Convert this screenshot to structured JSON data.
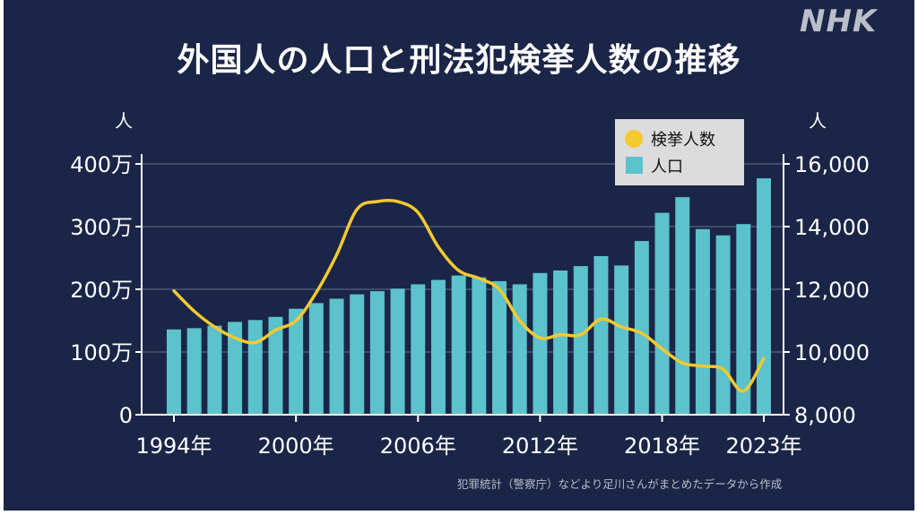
{
  "brand": "NHK",
  "title": "外国人の人口と刑法犯検挙人数の推移",
  "source_note": "犯罪統計（警察庁）などより足川さんがまとめたデータから作成",
  "colors": {
    "background": "#1a2547",
    "bar": "#5cc2cc",
    "line": "#f5c930",
    "grid": "#4d5878",
    "text": "#ffffff",
    "legend_bg": "#dcdcdc"
  },
  "chart_data": {
    "type": "bar",
    "title": "外国人の人口と刑法犯検挙人数の推移",
    "x": [
      1994,
      1995,
      1996,
      1997,
      1998,
      1999,
      2000,
      2001,
      2002,
      2003,
      2004,
      2005,
      2006,
      2007,
      2008,
      2009,
      2010,
      2011,
      2012,
      2013,
      2014,
      2015,
      2016,
      2017,
      2018,
      2019,
      2020,
      2021,
      2022,
      2023
    ],
    "x_tick_labels": [
      "1994年",
      "2000年",
      "2006年",
      "2012年",
      "2018年",
      "2023年"
    ],
    "x_tick_values": [
      1994,
      2000,
      2006,
      2012,
      2018,
      2023
    ],
    "y_left": {
      "unit": "人",
      "ylim": [
        0,
        4000000
      ],
      "ticks": [
        0,
        1000000,
        2000000,
        3000000,
        4000000
      ],
      "tick_labels": [
        "0",
        "100万",
        "200万",
        "300万",
        "400万"
      ]
    },
    "y_right": {
      "unit": "人",
      "ylim": [
        8000,
        17000
      ],
      "ticks": [
        8000,
        10000,
        12000,
        14000,
        16000
      ],
      "tick_labels": [
        "8,000",
        "10,000",
        "12,000",
        "14,000",
        "16,000"
      ]
    },
    "grid": true,
    "legend_position": "top-right",
    "series": [
      {
        "name": "人口",
        "type": "bar",
        "axis": "left",
        "color": "#5cc2cc",
        "values": [
          1360000,
          1380000,
          1420000,
          1480000,
          1510000,
          1560000,
          1690000,
          1780000,
          1850000,
          1920000,
          1970000,
          2010000,
          2080000,
          2150000,
          2220000,
          2190000,
          2130000,
          2080000,
          2260000,
          2300000,
          2370000,
          2530000,
          2380000,
          2770000,
          3220000,
          3470000,
          2960000,
          2860000,
          3040000,
          3770000
        ]
      },
      {
        "name": "検挙人数",
        "type": "line",
        "axis": "right",
        "color": "#f5c930",
        "values": [
          11950,
          11300,
          10800,
          10450,
          10300,
          10700,
          11000,
          11900,
          13100,
          14550,
          14800,
          14800,
          14450,
          13350,
          12600,
          12350,
          12000,
          11000,
          10450,
          10550,
          10550,
          11050,
          10800,
          10600,
          10100,
          9650,
          9550,
          9450,
          8750,
          9800
        ]
      }
    ]
  }
}
